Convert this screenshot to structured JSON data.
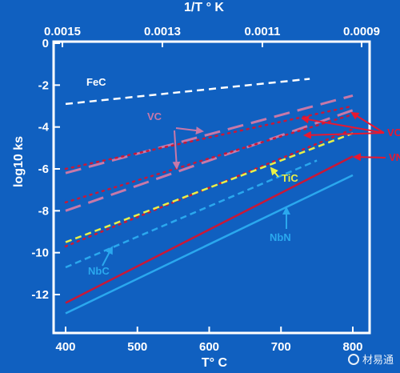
{
  "colors": {
    "background": "#1060c0",
    "axis": "#ffffff",
    "fec": "#ffffff",
    "vc": "#c878a8",
    "tic": "#e8f048",
    "nbc": "#2aa8ee",
    "vn": "#c81838",
    "nbn": "#2aa8ee",
    "arrow_red": "#e81830"
  },
  "chart_data": {
    "type": "line",
    "xlabel": "T°  C",
    "x2label": "1/T °  K",
    "ylabel": "log10 ks",
    "xlim": [
      400,
      800
    ],
    "ylim": [
      -12,
      0
    ],
    "x_ticks": [
      400,
      500,
      600,
      700,
      800
    ],
    "x_tick_labels": [
      "400",
      "500",
      "600",
      "700",
      "800"
    ],
    "x2_ticks": [
      0.0015,
      0.0013,
      0.0011,
      0.0009
    ],
    "x2_tick_labels": [
      "0.0015",
      "0.0013",
      "0.0011",
      "0.0009"
    ],
    "y_ticks": [
      0,
      -2,
      -4,
      -6,
      -8,
      -10,
      -12
    ],
    "y_tick_labels": [
      "0",
      "-2",
      "-4",
      "-6",
      "-8",
      "-10",
      "-12"
    ],
    "series": [
      {
        "name": "FeC",
        "style": "dash-white",
        "points": [
          [
            400,
            -2.9
          ],
          [
            740,
            -1.7
          ]
        ]
      },
      {
        "name": "VC",
        "style": "longdash-pink",
        "points": [
          [
            400,
            -6.2
          ],
          [
            800,
            -2.5
          ]
        ]
      },
      {
        "name": "VC",
        "style": "longdash-pink",
        "points": [
          [
            400,
            -8.0
          ],
          [
            800,
            -3.2
          ]
        ]
      },
      {
        "name": "",
        "style": "dot-red",
        "points": [
          [
            400,
            -6.0
          ],
          [
            800,
            -3.0
          ]
        ]
      },
      {
        "name": "",
        "style": "dot-red",
        "points": [
          [
            400,
            -7.6
          ],
          [
            800,
            -3.4
          ]
        ]
      },
      {
        "name": "",
        "style": "dot-red",
        "points": [
          [
            400,
            -9.7
          ],
          [
            800,
            -4.1
          ]
        ]
      },
      {
        "name": "TiC",
        "style": "dash-yellow",
        "points": [
          [
            400,
            -9.5
          ],
          [
            800,
            -4.3
          ]
        ]
      },
      {
        "name": "NbC",
        "style": "dash-lightblue",
        "points": [
          [
            400,
            -10.7
          ],
          [
            750,
            -5.6
          ]
        ]
      },
      {
        "name": "VN",
        "style": "solid-red",
        "points": [
          [
            400,
            -12.4
          ],
          [
            800,
            -5.4
          ]
        ]
      },
      {
        "name": "NbN",
        "style": "solid-lightblue",
        "points": [
          [
            400,
            -12.9
          ],
          [
            800,
            -6.3
          ]
        ]
      }
    ],
    "annotations": [
      {
        "text": "FeC",
        "key": "fec"
      },
      {
        "text": "VC",
        "key": "vc"
      },
      {
        "text": "TiC",
        "key": "tic"
      },
      {
        "text": "NbC",
        "key": "nbc"
      },
      {
        "text": "NbN",
        "key": "nbn"
      },
      {
        "text": "VC",
        "key": "vc_right"
      },
      {
        "text": "VN",
        "key": "vn_right"
      }
    ]
  },
  "watermark": {
    "text": "材易通"
  }
}
